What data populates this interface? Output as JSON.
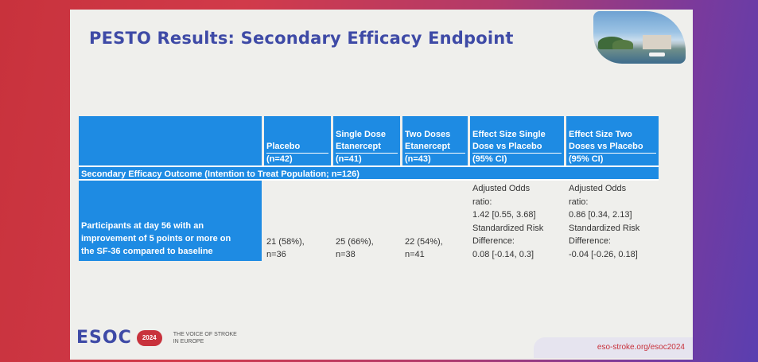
{
  "slide": {
    "title": "PESTO Results: Secondary Efficacy Endpoint"
  },
  "table": {
    "headers": [
      {
        "lines": [
          "Placebo"
        ],
        "paren": "(n=42)"
      },
      {
        "lines": [
          "Single Dose",
          "Etanercept"
        ],
        "paren": "(n=41)"
      },
      {
        "lines": [
          "Two Doses",
          "Etanercept"
        ],
        "paren": "(n=43)"
      },
      {
        "lines": [
          "Effect Size Single",
          "Dose vs Placebo"
        ],
        "paren": "(95% CI)"
      },
      {
        "lines": [
          "Effect Size Two",
          "Doses vs Placebo"
        ],
        "paren": "(95% CI)"
      }
    ],
    "section": "Secondary Efficacy Outcome (Intention to Treat Population; n=126)",
    "row": {
      "label_lines": [
        "Participants at day 56 with an",
        "improvement of 5 points or more on",
        "the SF-36 compared to baseline"
      ],
      "placebo": [
        "21 (58%),",
        "n=36"
      ],
      "single": [
        "25 (66%),",
        "n=38"
      ],
      "two": [
        "22 (54%),",
        "n=41"
      ],
      "effect_single": [
        "Adjusted Odds",
        "ratio:",
        "1.42 [0.55, 3.68]",
        "Standardized Risk",
        "Difference:",
        "0.08 [-0.14, 0.3]"
      ],
      "effect_two": [
        "Adjusted Odds",
        "ratio:",
        "0.86 [0.34, 2.13]",
        "Standardized Risk",
        "Difference:",
        "-0.04 [-0.26, 0.18]"
      ]
    }
  },
  "footer": {
    "logo": "ESOC",
    "year": "2024",
    "tagline_lines": [
      "THE VOICE OF STROKE",
      "IN EUROPE"
    ],
    "url": "eso-stroke.org/esoc2024"
  },
  "colors": {
    "title": "#3e4aa6",
    "table_header": "#1e8be3",
    "accent_red": "#c8323c"
  }
}
